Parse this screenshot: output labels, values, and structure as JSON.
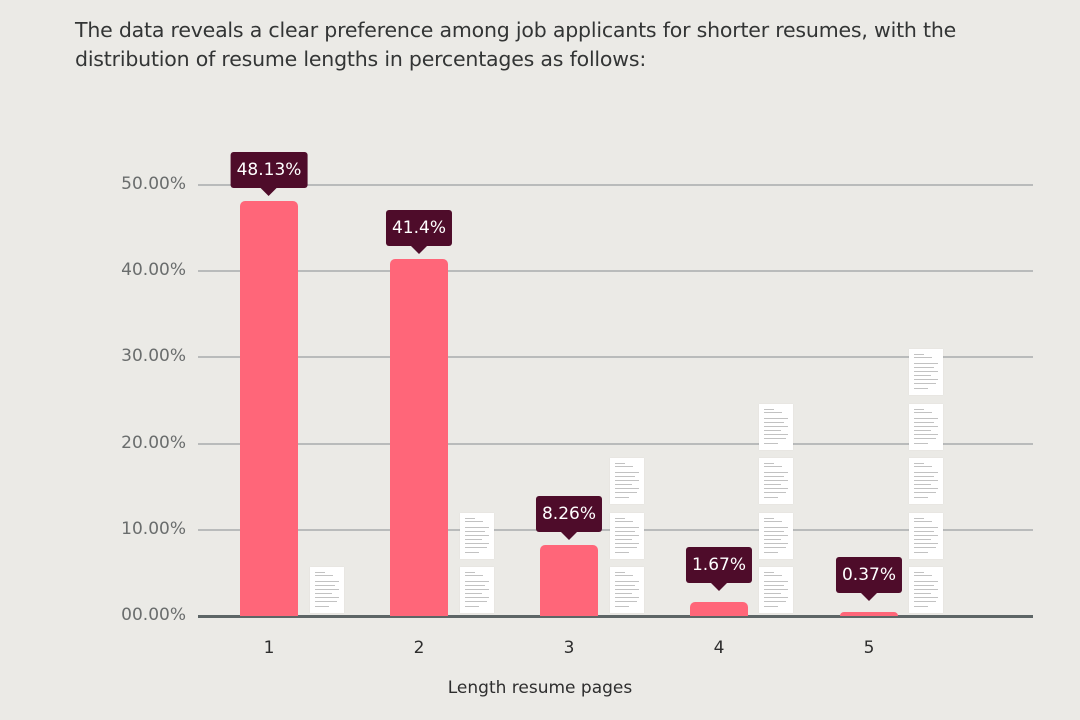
{
  "intro_text": "The data reveals a clear preference among job applicants for shorter resumes, with the distribution of resume lengths in percentages as follows:",
  "colors": {
    "background": "#ebeae6",
    "bar": "#ff6679",
    "tooltip": "#4e0c2a",
    "gridline": "#b9bbbb",
    "baseline": "#5d6566"
  },
  "chart_data": {
    "type": "bar",
    "title": "",
    "xlabel": "Length resume pages",
    "ylabel": "",
    "categories": [
      "1",
      "2",
      "3",
      "4",
      "5"
    ],
    "values": [
      48.13,
      41.4,
      8.26,
      1.67,
      0.37
    ],
    "value_labels": [
      "48.13%",
      "41.4%",
      "8.26%",
      "1.67%",
      "0.37%"
    ],
    "y_ticks": [
      "00.00%",
      "10.00%",
      "20.00%",
      "30.00%",
      "40.00%",
      "50.00%"
    ],
    "ylim": [
      0,
      50
    ],
    "grid": true,
    "legend": null,
    "annotations": "Stacked document icons beside each bar, count equal to page count (1 to 5)",
    "doc_icon_counts": [
      1,
      2,
      3,
      4,
      5
    ]
  }
}
